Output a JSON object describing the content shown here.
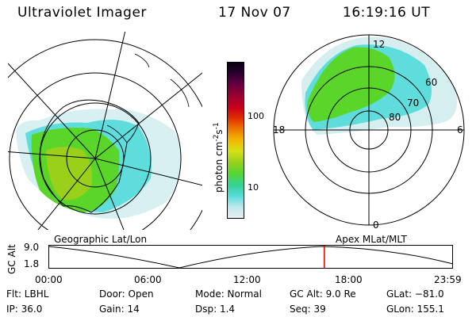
{
  "header": {
    "instrument": "Ultraviolet Imager",
    "date": "17 Nov 07",
    "time": "16:19:16 UT"
  },
  "left_panel": {
    "caption": "Geographic Lat/Lon"
  },
  "right_panel": {
    "caption": "Apex MLat/MLT",
    "mlt_labels": {
      "top": "12",
      "bottom": "0",
      "left": "18",
      "right": "6"
    },
    "lat_labels": [
      "60",
      "70",
      "80"
    ]
  },
  "colorbar": {
    "label": "photon cm",
    "label_sup1": "-2",
    "label_mid": "s",
    "label_sup2": "-1",
    "ticks": [
      "100",
      "10"
    ],
    "colors": [
      "#e8eef0",
      "#bfe8ec",
      "#59dcdc",
      "#33d39a",
      "#58d630",
      "#9ad01a",
      "#d6e016",
      "#f2b800",
      "#ee7a00",
      "#e03000",
      "#c8001a",
      "#990033",
      "#660040",
      "#2a0030",
      "#080010"
    ]
  },
  "timeline": {
    "ylabel": "GC Alt",
    "yticks": [
      "9.0",
      "1.8"
    ],
    "xticks": [
      "00:00",
      "06:00",
      "12:00",
      "18:00",
      "23:59"
    ],
    "current_time_fraction": 0.682
  },
  "info": {
    "filter": "Flt: LBHL",
    "ip": "IP: 36.0",
    "door": "Door: Open",
    "gain": "Gain: 14",
    "mode": "Mode: Normal",
    "dsp": "Dsp:    1.4",
    "gc_alt": "GC Alt: 9.0 Re",
    "seq": "Seq: 39",
    "glat": "GLat: −81.0",
    "glon": "GLon: 155.1"
  },
  "colors": {
    "aurora_green": "#5ad62a",
    "aurora_lime": "#9ad01a",
    "aurora_cyan": "#3fdcdc",
    "aurora_pale": "#cfeff2",
    "marker_red": "#e00000"
  }
}
